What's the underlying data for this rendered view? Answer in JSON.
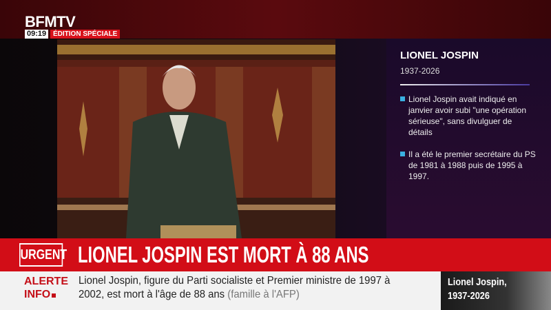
{
  "channel": {
    "logo": "BFMTV",
    "time": "09:19",
    "edition": "ÉDITION SPÉCIALE"
  },
  "panel": {
    "name": "LIONEL JOSPIN",
    "years": "1937-2026",
    "bullets": [
      "Lionel Jospin avait indiqué en janvier avoir subi \"une opération sérieuse\", sans divulguer de détails",
      "Il a été le premier secrétaire du PS de 1981 à 1988 puis de 1995 à 1997."
    ],
    "bullet_color": "#3ab0e0"
  },
  "urgent": {
    "label": "URGENT",
    "headline": "LIONEL JOSPIN EST MORT À 88 ANS",
    "color": "#d20d17"
  },
  "ticker": {
    "label_line1": "ALERTE",
    "label_line2": "INFO",
    "line1": "Lionel Jospin, figure du Parti socialiste et Premier ministre de 1997 à",
    "line2": "2002, est mort à l'âge de 88 ans",
    "source": "(famille à l'AFP)"
  },
  "thumbnail": {
    "name": "Lionel Jospin,",
    "years": "1937-2026"
  }
}
